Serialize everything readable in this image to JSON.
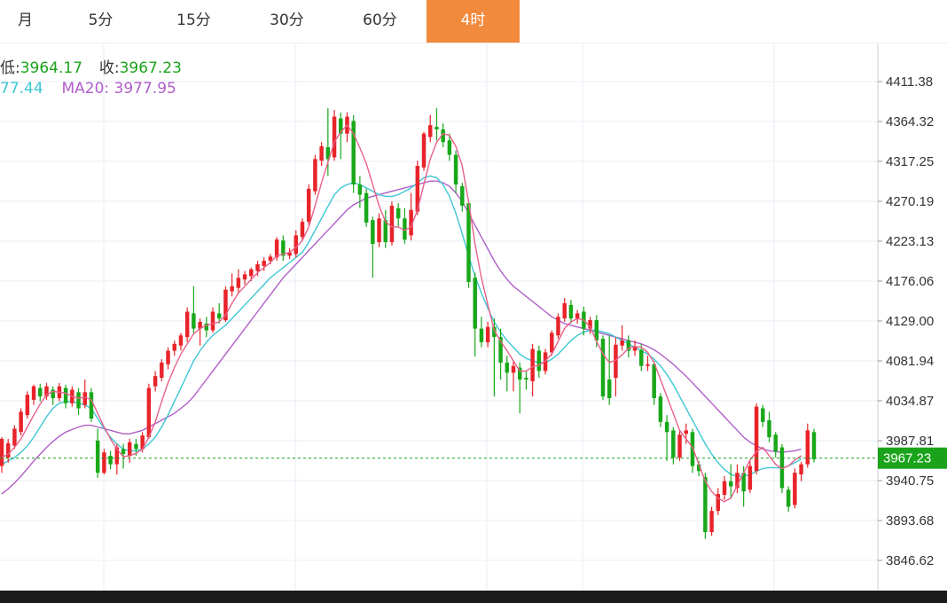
{
  "tabs": [
    {
      "label": "月",
      "active": false
    },
    {
      "label": "5分",
      "active": false
    },
    {
      "label": "15分",
      "active": false
    },
    {
      "label": "30分",
      "active": false
    },
    {
      "label": "60分",
      "active": false
    },
    {
      "label": "4时",
      "active": true
    }
  ],
  "info": {
    "low_label": "低:",
    "low_value": "3964.17",
    "close_label": "收:",
    "close_value": "3967.23",
    "ma10_value": "77.44",
    "ma20_label": "MA20:",
    "ma20_value": "3977.95"
  },
  "colors": {
    "up": "#e8242a",
    "down": "#19a819",
    "ma5": "#e8608a",
    "ma10": "#3ec6d4",
    "ma20": "#b05ec8",
    "accent": "#f28a3d",
    "last_price_line": "#1aa31a"
  },
  "chart_data": {
    "type": "candlestick",
    "y_ticks": [
      "4411.38",
      "4364.32",
      "4317.25",
      "4270.19",
      "4223.13",
      "4176.06",
      "4129.00",
      "4081.94",
      "4034.87",
      "3987.81",
      "3940.75",
      "3893.68",
      "3846.62"
    ],
    "ylim": [
      3830,
      4450
    ],
    "last_price": "3967.23",
    "grid": true,
    "candles": [
      [
        3958,
        3990,
        3950,
        3992
      ],
      [
        3968,
        3985,
        3962,
        3990
      ],
      [
        3982,
        4002,
        3978,
        4006
      ],
      [
        3998,
        4022,
        3994,
        4026
      ],
      [
        4018,
        4042,
        4014,
        4046
      ],
      [
        4036,
        4052,
        4030,
        4054
      ],
      [
        4050,
        4040,
        4034,
        4055
      ],
      [
        4040,
        4052,
        4036,
        4056
      ],
      [
        4048,
        4038,
        4030,
        4052
      ],
      [
        4038,
        4052,
        4034,
        4056
      ],
      [
        4050,
        4032,
        4026,
        4054
      ],
      [
        4032,
        4048,
        4028,
        4052
      ],
      [
        4045,
        4026,
        4018,
        4050
      ],
      [
        4030,
        4045,
        4026,
        4060
      ],
      [
        4045,
        4014,
        4010,
        4050
      ],
      [
        3988,
        3950,
        3944,
        4002
      ],
      [
        3950,
        3974,
        3948,
        3978
      ],
      [
        3970,
        3960,
        3954,
        3976
      ],
      [
        3960,
        3980,
        3948,
        3984
      ],
      [
        3978,
        3972,
        3955,
        3984
      ],
      [
        3970,
        3986,
        3962,
        3990
      ],
      [
        3984,
        3978,
        3970,
        3990
      ],
      [
        3978,
        3994,
        3974,
        3998
      ],
      [
        3992,
        4050,
        3990,
        4055
      ],
      [
        4052,
        4064,
        4046,
        4070
      ],
      [
        4062,
        4080,
        4058,
        4084
      ],
      [
        4078,
        4094,
        4072,
        4098
      ],
      [
        4094,
        4102,
        4088,
        4106
      ],
      [
        4100,
        4112,
        4094,
        4115
      ],
      [
        4110,
        4140,
        4104,
        4145
      ],
      [
        4138,
        4120,
        4114,
        4170
      ],
      [
        4120,
        4128,
        4100,
        4132
      ],
      [
        4126,
        4118,
        4110,
        4134
      ],
      [
        4118,
        4140,
        4115,
        4145
      ],
      [
        4138,
        4132,
        4126,
        4150
      ],
      [
        4130,
        4166,
        4128,
        4170
      ],
      [
        4164,
        4170,
        4158,
        4185
      ],
      [
        4168,
        4180,
        4162,
        4190
      ],
      [
        4178,
        4184,
        4172,
        4188
      ],
      [
        4182,
        4190,
        4176,
        4192
      ],
      [
        4188,
        4196,
        4182,
        4200
      ],
      [
        4194,
        4200,
        4188,
        4204
      ],
      [
        4200,
        4205,
        4196,
        4208
      ],
      [
        4204,
        4225,
        4200,
        4228
      ],
      [
        4224,
        4206,
        4200,
        4230
      ],
      [
        4206,
        4210,
        4202,
        4215
      ],
      [
        4208,
        4230,
        4204,
        4236
      ],
      [
        4228,
        4246,
        4224,
        4250
      ],
      [
        4246,
        4285,
        4242,
        4290
      ],
      [
        4282,
        4320,
        4278,
        4325
      ],
      [
        4318,
        4335,
        4312,
        4340
      ],
      [
        4334,
        4320,
        4300,
        4380
      ],
      [
        4322,
        4370,
        4318,
        4378
      ],
      [
        4368,
        4350,
        4320,
        4375
      ],
      [
        4350,
        4370,
        4340,
        4375
      ],
      [
        4365,
        4290,
        4280,
        4372
      ],
      [
        4290,
        4278,
        4262,
        4300
      ],
      [
        4280,
        4245,
        4240,
        4285
      ],
      [
        4248,
        4220,
        4180,
        4252
      ],
      [
        4222,
        4250,
        4216,
        4256
      ],
      [
        4248,
        4222,
        4215,
        4260
      ],
      [
        4222,
        4265,
        4218,
        4270
      ],
      [
        4262,
        4250,
        4240,
        4268
      ],
      [
        4250,
        4225,
        4220,
        4262
      ],
      [
        4230,
        4260,
        4224,
        4280
      ],
      [
        4258,
        4312,
        4254,
        4318
      ],
      [
        4310,
        4350,
        4306,
        4352
      ],
      [
        4346,
        4360,
        4340,
        4372
      ],
      [
        4358,
        4355,
        4342,
        4380
      ],
      [
        4355,
        4340,
        4334,
        4362
      ],
      [
        4342,
        4325,
        4318,
        4350
      ],
      [
        4325,
        4290,
        4280,
        4330
      ],
      [
        4288,
        4265,
        4258,
        4292
      ],
      [
        4268,
        4175,
        4168,
        4272
      ],
      [
        4180,
        4120,
        4087,
        4186
      ],
      [
        4120,
        4104,
        4098,
        4134
      ],
      [
        4104,
        4122,
        4098,
        4128
      ],
      [
        4122,
        4110,
        4040,
        4132
      ],
      [
        4110,
        4080,
        4060,
        4120
      ],
      [
        4080,
        4068,
        4046,
        4088
      ],
      [
        4068,
        4076,
        4046,
        4082
      ],
      [
        4074,
        4060,
        4020,
        4080
      ],
      [
        4062,
        4060,
        4048,
        4070
      ],
      [
        4058,
        4096,
        4040,
        4102
      ],
      [
        4094,
        4070,
        4062,
        4100
      ],
      [
        4070,
        4092,
        4066,
        4096
      ],
      [
        4092,
        4115,
        4088,
        4118
      ],
      [
        4112,
        4134,
        4108,
        4138
      ],
      [
        4132,
        4150,
        4128,
        4156
      ],
      [
        4148,
        4132,
        4126,
        4154
      ],
      [
        4132,
        4138,
        4126,
        4142
      ],
      [
        4140,
        4120,
        4112,
        4146
      ],
      [
        4120,
        4130,
        4114,
        4134
      ],
      [
        4130,
        4106,
        4098,
        4136
      ],
      [
        4108,
        4040,
        4036,
        4112
      ],
      [
        4060,
        4038,
        4030,
        4112
      ],
      [
        4062,
        4101,
        4040,
        4110
      ],
      [
        4100,
        4106,
        4094,
        4124
      ],
      [
        4106,
        4094,
        4086,
        4112
      ],
      [
        4094,
        4098,
        4088,
        4106
      ],
      [
        4095,
        4076,
        4070,
        4102
      ],
      [
        4076,
        4078,
        4070,
        4088
      ],
      [
        4078,
        4038,
        4030,
        4082
      ],
      [
        4040,
        4010,
        4004,
        4044
      ],
      [
        4010,
        3998,
        3964,
        4018
      ],
      [
        4000,
        3968,
        3960,
        4004
      ],
      [
        3968,
        3995,
        3964,
        4000
      ],
      [
        3996,
        4000,
        3984,
        4008
      ],
      [
        3998,
        3958,
        3950,
        4002
      ],
      [
        3960,
        3952,
        3946,
        3964
      ],
      [
        3945,
        3880,
        3872,
        3950
      ],
      [
        3880,
        3905,
        3876,
        3910
      ],
      [
        3905,
        3925,
        3900,
        3932
      ],
      [
        3924,
        3940,
        3918,
        3946
      ],
      [
        3940,
        3934,
        3920,
        3960
      ],
      [
        3932,
        3950,
        3926,
        3960
      ],
      [
        3950,
        3928,
        3910,
        3958
      ],
      [
        3930,
        3958,
        3926,
        3964
      ],
      [
        3952,
        4028,
        3948,
        4032
      ],
      [
        4026,
        4010,
        4004,
        4030
      ],
      [
        4012,
        3992,
        3986,
        4022
      ],
      [
        3995,
        3975,
        3968,
        3998
      ],
      [
        3980,
        3932,
        3926,
        3984
      ],
      [
        3930,
        3910,
        3904,
        3934
      ],
      [
        3912,
        3950,
        3908,
        3955
      ],
      [
        3948,
        3960,
        3940,
        3963
      ],
      [
        3960,
        4000,
        3956,
        4008
      ],
      [
        3998,
        3966,
        3962,
        4002
      ]
    ],
    "ma5": [
      3968,
      3972,
      3980,
      3990,
      4004,
      4018,
      4031,
      4042,
      4046,
      4045,
      4044,
      4040,
      4038,
      4039,
      4036,
      4020,
      4004,
      3990,
      3978,
      3969,
      3970,
      3973,
      3978,
      3992,
      4010,
      4034,
      4056,
      4074,
      4090,
      4102,
      4114,
      4120,
      4124,
      4126,
      4128,
      4136,
      4150,
      4162,
      4170,
      4178,
      4186,
      4192,
      4198,
      4206,
      4208,
      4210,
      4216,
      4224,
      4240,
      4265,
      4292,
      4316,
      4340,
      4352,
      4360,
      4350,
      4333,
      4315,
      4290,
      4265,
      4246,
      4240,
      4240,
      4236,
      4240,
      4260,
      4290,
      4320,
      4340,
      4350,
      4348,
      4335,
      4312,
      4270,
      4220,
      4180,
      4148,
      4118,
      4105,
      4094,
      4082,
      4070,
      4070,
      4075,
      4077,
      4082,
      4090,
      4105,
      4120,
      4128,
      4132,
      4130,
      4122,
      4105,
      4090,
      4080,
      4083,
      4089,
      4097,
      4099,
      4098,
      4092,
      4080,
      4060,
      4040,
      4020,
      4000,
      3990,
      3980,
      3960,
      3940,
      3928,
      3920,
      3916,
      3920,
      3935,
      3950,
      3965,
      3975,
      3980,
      3970,
      3960,
      3955,
      3958,
      3965,
      3970
    ],
    "ma10": [
      3960,
      3964,
      3968,
      3974,
      3982,
      3992,
      4004,
      4016,
      4026,
      4032,
      4034,
      4034,
      4032,
      4030,
      4026,
      4014,
      4002,
      3992,
      3984,
      3978,
      3976,
      3976,
      3978,
      3984,
      3992,
      4004,
      4018,
      4034,
      4050,
      4066,
      4082,
      4094,
      4104,
      4112,
      4118,
      4124,
      4132,
      4140,
      4148,
      4156,
      4164,
      4172,
      4180,
      4186,
      4192,
      4198,
      4204,
      4210,
      4222,
      4236,
      4250,
      4264,
      4278,
      4286,
      4290,
      4292,
      4290,
      4286,
      4282,
      4278,
      4276,
      4276,
      4278,
      4282,
      4286,
      4292,
      4298,
      4300,
      4298,
      4290,
      4276,
      4256,
      4232,
      4206,
      4182,
      4162,
      4144,
      4128,
      4116,
      4106,
      4098,
      4090,
      4085,
      4082,
      4080,
      4080,
      4084,
      4090,
      4098,
      4106,
      4112,
      4116,
      4118,
      4118,
      4116,
      4114,
      4110,
      4106,
      4102,
      4098,
      4094,
      4090,
      4084,
      4076,
      4066,
      4054,
      4040,
      4026,
      4012,
      3998,
      3984,
      3972,
      3962,
      3954,
      3948,
      3946,
      3946,
      3948,
      3952,
      3955,
      3956,
      3956,
      3956,
      3958,
      3962,
      3966
    ],
    "ma20": [
      3925,
      3931,
      3938,
      3946,
      3955,
      3964,
      3972,
      3980,
      3987,
      3993,
      3998,
      4001,
      4004,
      4006,
      4006,
      4004,
      4002,
      4000,
      3998,
      3996,
      3996,
      3998,
      4000,
      4004,
      4008,
      4012,
      4016,
      4020,
      4026,
      4032,
      4040,
      4050,
      4060,
      4070,
      4080,
      4090,
      4100,
      4110,
      4120,
      4130,
      4140,
      4150,
      4160,
      4170,
      4180,
      4188,
      4196,
      4204,
      4212,
      4220,
      4228,
      4236,
      4244,
      4252,
      4260,
      4266,
      4270,
      4274,
      4276,
      4278,
      4280,
      4282,
      4284,
      4286,
      4288,
      4290,
      4292,
      4294,
      4294,
      4292,
      4288,
      4280,
      4270,
      4256,
      4242,
      4228,
      4214,
      4200,
      4188,
      4178,
      4170,
      4164,
      4158,
      4152,
      4146,
      4140,
      4134,
      4130,
      4126,
      4124,
      4122,
      4120,
      4118,
      4116,
      4114,
      4112,
      4110,
      4108,
      4106,
      4104,
      4102,
      4099,
      4095,
      4090,
      4084,
      4078,
      4071,
      4064,
      4056,
      4048,
      4040,
      4032,
      4024,
      4016,
      4008,
      4000,
      3992,
      3986,
      3982,
      3978,
      3976,
      3975,
      3974,
      3975,
      3976,
      3978
    ]
  }
}
